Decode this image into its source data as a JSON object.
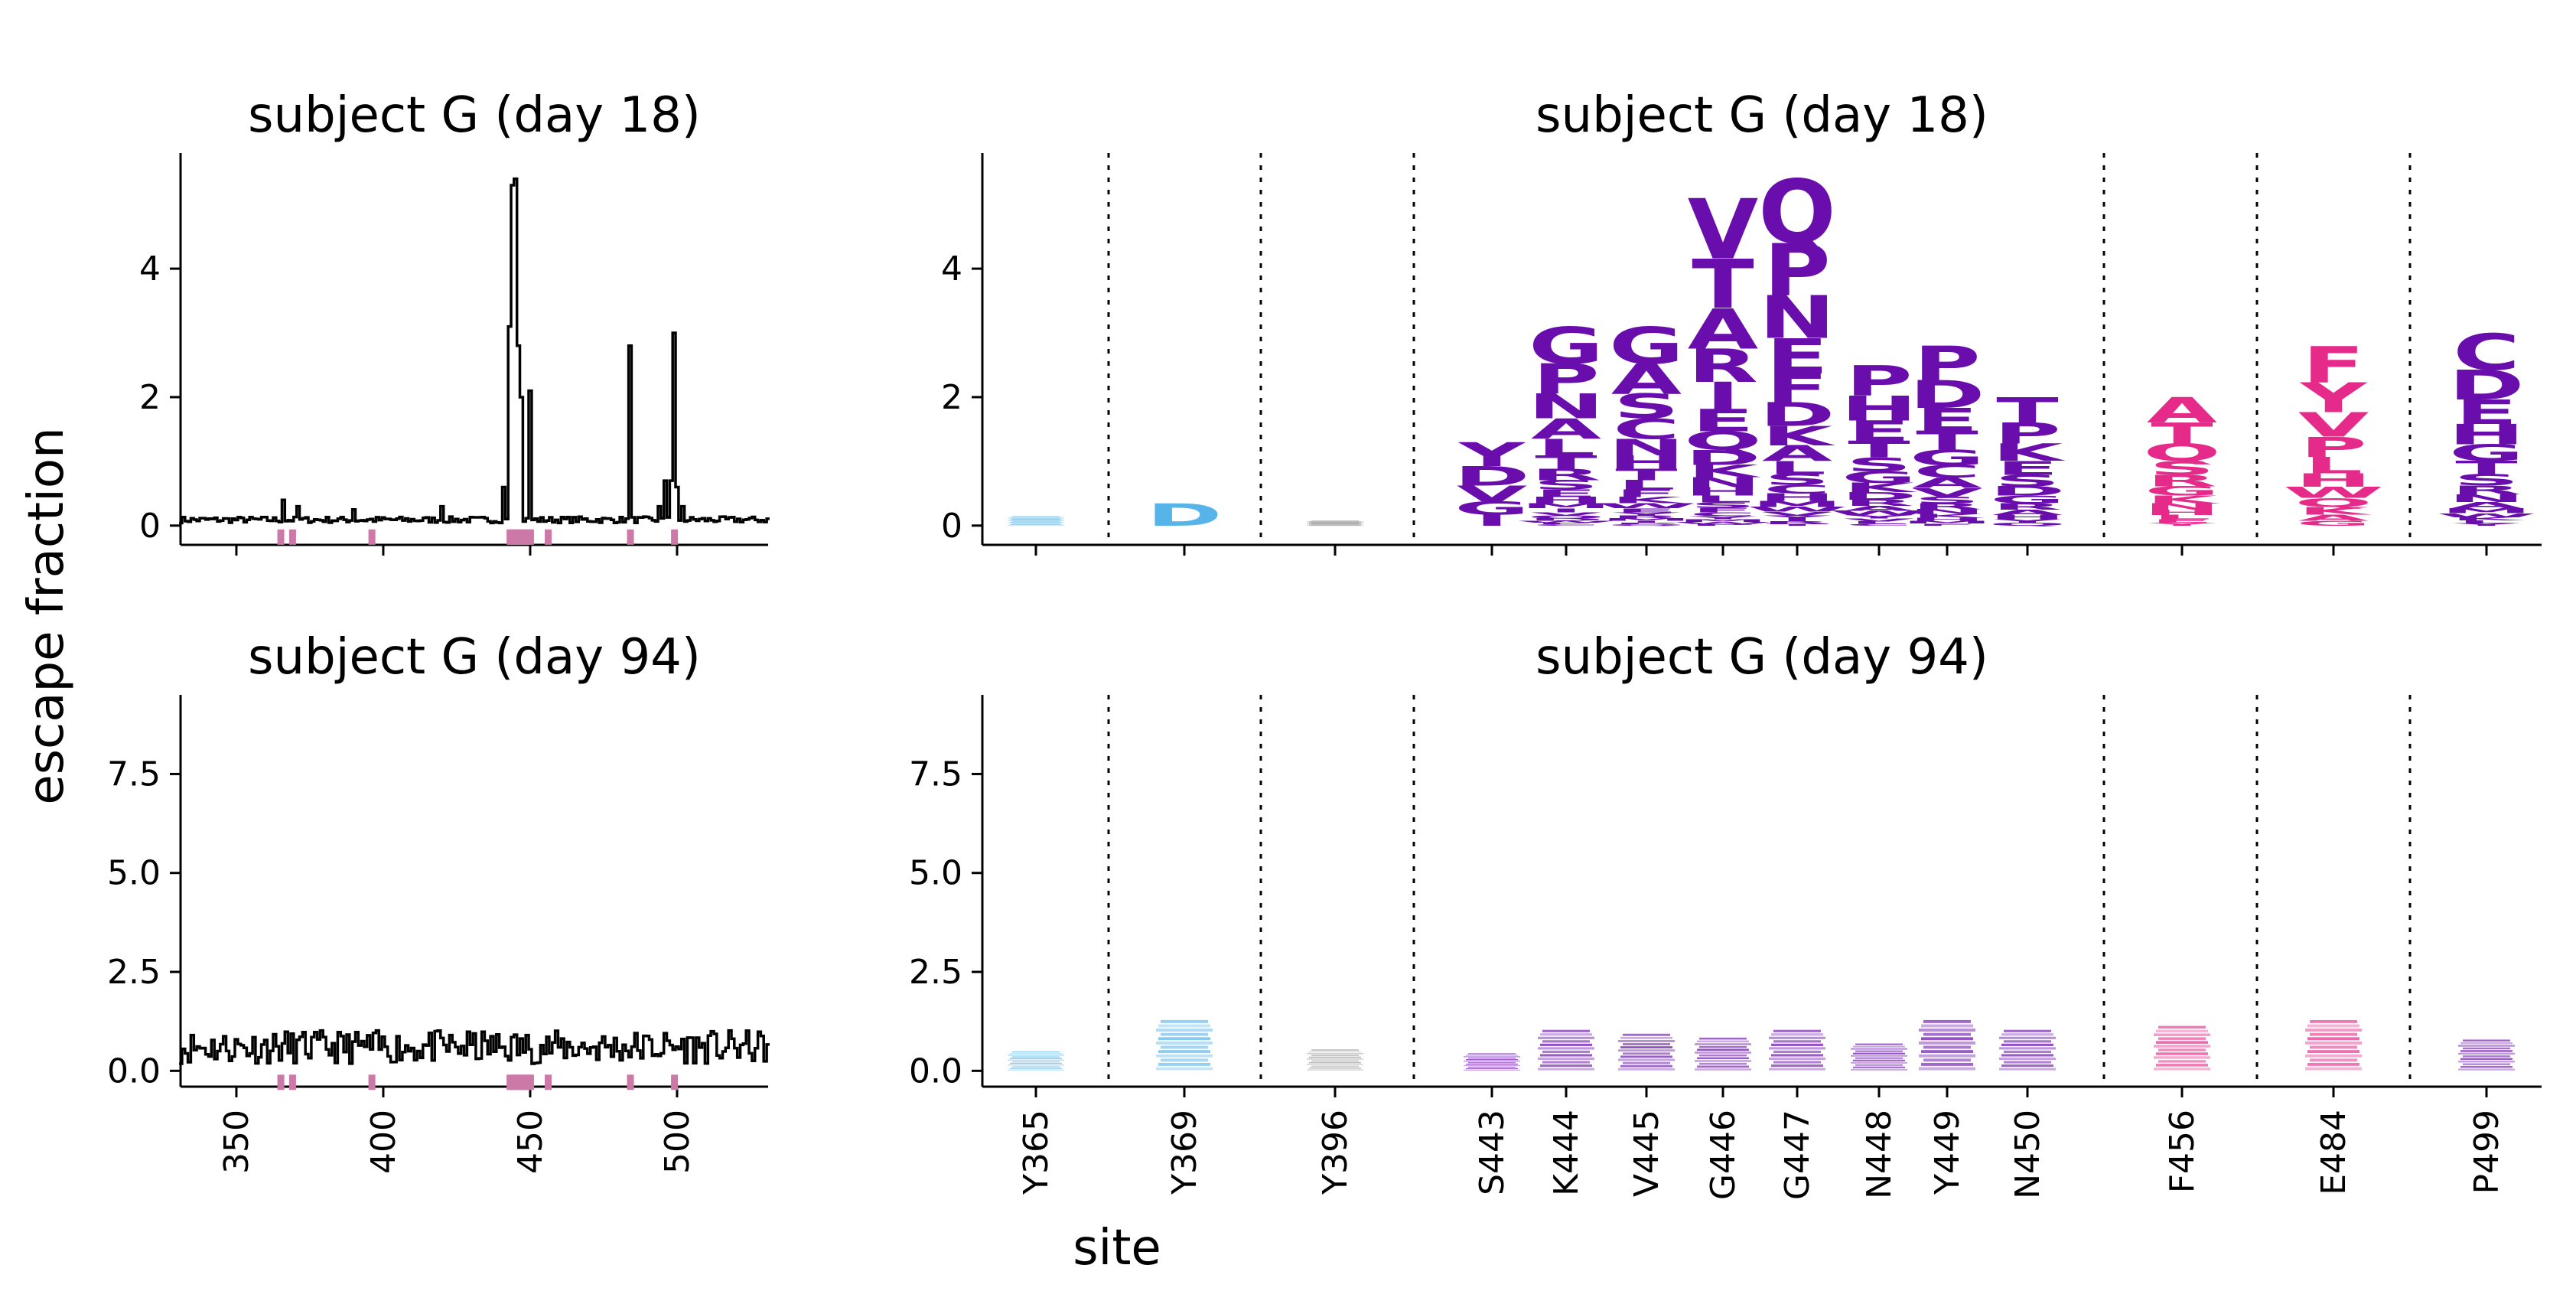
{
  "figure": {
    "ylabel": "escape fraction",
    "xlabel": "site"
  },
  "colors": {
    "line": "#000000",
    "site_marker": "#cc79a7",
    "light_blue": "#56b4e9",
    "gray": "#999999",
    "purple": "#6a0dad",
    "pink": "#e62a8a"
  },
  "chart_data": [
    {
      "type": "line",
      "title": "subject G (day 18)",
      "xlabel": "",
      "ylabel": "escape fraction",
      "xlim": [
        331,
        531
      ],
      "ylim": [
        -0.3,
        5.8
      ],
      "xticks": [
        350,
        400,
        450,
        500
      ],
      "yticks": [
        0,
        2,
        4
      ],
      "show_xticklabels": false,
      "highlighted_sites": [
        365,
        369,
        396,
        443,
        444,
        445,
        446,
        447,
        448,
        449,
        450,
        456,
        484,
        499
      ],
      "peaks": [
        {
          "site": 441,
          "value": 0.6
        },
        {
          "site": 443,
          "value": 3.1
        },
        {
          "site": 444,
          "value": 5.3
        },
        {
          "site": 445,
          "value": 5.4
        },
        {
          "site": 446,
          "value": 2.8
        },
        {
          "site": 447,
          "value": 2.0
        },
        {
          "site": 450,
          "value": 2.1
        },
        {
          "site": 484,
          "value": 2.8
        },
        {
          "site": 494,
          "value": 0.3
        },
        {
          "site": 496,
          "value": 0.7
        },
        {
          "site": 498,
          "value": 0.7
        },
        {
          "site": 499,
          "value": 3.0
        },
        {
          "site": 500,
          "value": 0.6
        },
        {
          "site": 502,
          "value": 0.3
        },
        {
          "site": 366,
          "value": 0.4
        },
        {
          "site": 371,
          "value": 0.3
        },
        {
          "site": 390,
          "value": 0.25
        },
        {
          "site": 420,
          "value": 0.3
        }
      ]
    },
    {
      "type": "logo",
      "title": "subject G (day 18)",
      "ylim": [
        -0.3,
        5.8
      ],
      "yticks": [
        0,
        2,
        4
      ],
      "sites": [
        {
          "label": "Y365",
          "total": 0.15,
          "color": "light_blue",
          "letters": ""
        },
        {
          "label": "Y369",
          "total": 0.35,
          "color": "light_blue",
          "letters": "D"
        },
        {
          "label": "Y396",
          "total": 0.08,
          "color": "gray",
          "letters": ""
        },
        {
          "label": "S443",
          "total": 1.3,
          "color": "purple",
          "letters": "YDVGI"
        },
        {
          "label": "K444",
          "total": 3.1,
          "color": "purple",
          "letters": "GPNALTRSEHMIVQDWFC"
        },
        {
          "label": "V445",
          "total": 3.1,
          "color": "purple",
          "letters": "GASCNHTLFKWEYRMIPQ"
        },
        {
          "label": "G446",
          "total": 5.1,
          "color": "purple",
          "letters": "VTARIEQDKNHLSFCYMWP"
        },
        {
          "label": "G447",
          "total": 5.4,
          "color": "purple",
          "letters": "QPNEFDKALSCHMWVYIRT"
        },
        {
          "label": "N448",
          "total": 2.5,
          "color": "purple",
          "letters": "PHETSGKDRAWYVLC"
        },
        {
          "label": "Y449",
          "total": 2.8,
          "color": "purple",
          "letters": "PDETGCAVSRNKHMF"
        },
        {
          "label": "N450",
          "total": 2.0,
          "color": "purple",
          "letters": "TPKESDGRAHYQ"
        },
        {
          "label": "F456",
          "total": 2.0,
          "color": "pink",
          "letters": "ATQSRGKNHLEY"
        },
        {
          "label": "E484",
          "total": 2.8,
          "color": "pink",
          "letters": "FYVPLHWQKAG"
        },
        {
          "label": "P499",
          "total": 3.0,
          "color": "purple",
          "letters": "CDEHGTSRNAMWKLY"
        }
      ]
    },
    {
      "type": "line",
      "title": "subject G (day 94)",
      "xlabel": "site",
      "ylabel": "escape fraction",
      "xlim": [
        331,
        531
      ],
      "ylim": [
        -0.4,
        9.5
      ],
      "xticks": [
        350,
        400,
        450,
        500
      ],
      "xticklabels": [
        "350",
        "400",
        "450",
        "500"
      ],
      "yticks": [
        0.0,
        2.5,
        5.0,
        7.5
      ],
      "yticklabels": [
        "0.0",
        "2.5",
        "5.0",
        "7.5"
      ],
      "highlighted_sites": [
        365,
        369,
        396,
        443,
        444,
        445,
        446,
        447,
        448,
        449,
        450,
        456,
        484,
        499
      ],
      "mean_level": 0.6,
      "max_level": 1.6
    },
    {
      "type": "logo",
      "title": "subject G (day 94)",
      "ylim": [
        -0.4,
        9.5
      ],
      "yticks": [
        0.0,
        2.5,
        5.0,
        7.5
      ],
      "yticklabels": [
        "0.0",
        "2.5",
        "5.0",
        "7.5"
      ],
      "xticklabels": [
        "Y365",
        "Y369",
        "Y396",
        "S443",
        "K444",
        "V445",
        "G446",
        "G447",
        "N448",
        "Y449",
        "N450",
        "F456",
        "E484",
        "P499"
      ],
      "sites": [
        {
          "label": "Y365",
          "total": 0.5,
          "color": "light_blue"
        },
        {
          "label": "Y369",
          "total": 1.3,
          "color": "light_blue"
        },
        {
          "label": "Y396",
          "total": 0.55,
          "color": "gray"
        },
        {
          "label": "S443",
          "total": 0.45,
          "color": "purple"
        },
        {
          "label": "K444",
          "total": 1.05,
          "color": "purple"
        },
        {
          "label": "V445",
          "total": 0.95,
          "color": "purple"
        },
        {
          "label": "G446",
          "total": 0.85,
          "color": "purple"
        },
        {
          "label": "G447",
          "total": 1.05,
          "color": "purple"
        },
        {
          "label": "N448",
          "total": 0.7,
          "color": "purple"
        },
        {
          "label": "Y449",
          "total": 1.3,
          "color": "purple"
        },
        {
          "label": "N450",
          "total": 1.05,
          "color": "purple"
        },
        {
          "label": "F456",
          "total": 1.15,
          "color": "pink"
        },
        {
          "label": "E484",
          "total": 1.3,
          "color": "pink"
        },
        {
          "label": "P499",
          "total": 0.8,
          "color": "purple"
        }
      ]
    }
  ]
}
